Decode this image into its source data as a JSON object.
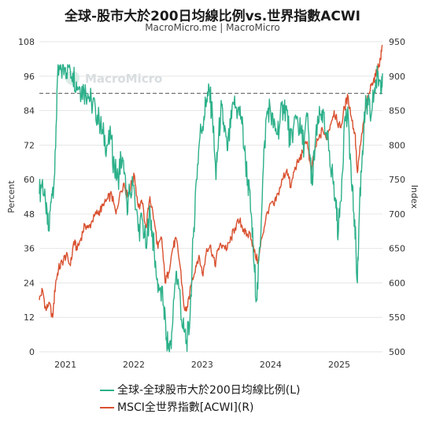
{
  "title": "全球-股市大於200日均線比例vs.世界指數ACWI",
  "subtitle": "MacroMicro.me | MacroMicro",
  "watermark": "MacroMicro",
  "colors": {
    "left_series": "#2db08a",
    "right_series": "#d9502f",
    "grid": "#e6e6e6",
    "ref_line": "#555555"
  },
  "chart_data": {
    "type": "line",
    "x_range": [
      "2020-08-15",
      "2025-08-20"
    ],
    "xticks": [
      "2021",
      "2022",
      "2023",
      "2024",
      "2025"
    ],
    "ylabel_left": "Percent",
    "ylabel_right": "Index",
    "ylim_left": [
      0,
      108
    ],
    "ylim_right": [
      500,
      950
    ],
    "yticks_left": [
      "0",
      "12",
      "24",
      "36",
      "48",
      "60",
      "72",
      "84",
      "96",
      "108"
    ],
    "yticks_right": [
      "500",
      "550",
      "600",
      "650",
      "700",
      "750",
      "800",
      "850",
      "900",
      "950"
    ],
    "reference_line_left": 90,
    "grid": true,
    "legend_position": "bottom",
    "series": [
      {
        "name": "全球-全球股市大於200日均線比例(L)",
        "axis": "left",
        "points": [
          [
            "2020-08-15",
            55
          ],
          [
            "2020-09-01",
            60
          ],
          [
            "2020-09-20",
            48
          ],
          [
            "2020-10-05",
            42
          ],
          [
            "2020-10-20",
            55
          ],
          [
            "2020-11-05",
            62
          ],
          [
            "2020-11-20",
            96
          ],
          [
            "2020-12-10",
            98
          ],
          [
            "2021-01-01",
            99
          ],
          [
            "2021-01-20",
            99
          ],
          [
            "2021-02-10",
            97
          ],
          [
            "2021-03-01",
            94
          ],
          [
            "2021-03-20",
            92
          ],
          [
            "2021-04-10",
            91
          ],
          [
            "2021-05-01",
            90
          ],
          [
            "2021-05-20",
            87
          ],
          [
            "2021-06-10",
            85
          ],
          [
            "2021-07-01",
            80
          ],
          [
            "2021-07-20",
            76
          ],
          [
            "2021-08-10",
            72
          ],
          [
            "2021-09-01",
            74
          ],
          [
            "2021-09-20",
            64
          ],
          [
            "2021-10-10",
            60
          ],
          [
            "2021-10-25",
            68
          ],
          [
            "2021-11-10",
            62
          ],
          [
            "2021-11-25",
            52
          ],
          [
            "2021-12-10",
            55
          ],
          [
            "2022-01-01",
            58
          ],
          [
            "2022-01-25",
            42
          ],
          [
            "2022-02-15",
            46
          ],
          [
            "2022-03-10",
            36
          ],
          [
            "2022-03-25",
            50
          ],
          [
            "2022-04-10",
            42
          ],
          [
            "2022-05-01",
            26
          ],
          [
            "2022-05-20",
            22
          ],
          [
            "2022-06-10",
            16
          ],
          [
            "2022-06-25",
            5
          ],
          [
            "2022-07-10",
            0
          ],
          [
            "2022-07-25",
            8
          ],
          [
            "2022-08-15",
            28
          ],
          [
            "2022-09-01",
            22
          ],
          [
            "2022-09-20",
            8
          ],
          [
            "2022-10-10",
            4
          ],
          [
            "2022-10-25",
            8
          ],
          [
            "2022-11-15",
            40
          ],
          [
            "2022-12-01",
            60
          ],
          [
            "2022-12-20",
            75
          ],
          [
            "2023-01-10",
            82
          ],
          [
            "2023-01-25",
            88
          ],
          [
            "2023-02-10",
            90
          ],
          [
            "2023-02-25",
            82
          ],
          [
            "2023-03-15",
            60
          ],
          [
            "2023-03-25",
            70
          ],
          [
            "2023-04-10",
            84
          ],
          [
            "2023-04-25",
            80
          ],
          [
            "2023-05-15",
            70
          ],
          [
            "2023-06-01",
            78
          ],
          [
            "2023-06-20",
            86
          ],
          [
            "2023-07-10",
            84
          ],
          [
            "2023-07-28",
            82
          ],
          [
            "2023-08-15",
            70
          ],
          [
            "2023-09-01",
            60
          ],
          [
            "2023-09-20",
            48
          ],
          [
            "2023-10-05",
            30
          ],
          [
            "2023-10-20",
            18
          ],
          [
            "2023-11-05",
            36
          ],
          [
            "2023-11-20",
            60
          ],
          [
            "2023-12-10",
            82
          ],
          [
            "2023-12-28",
            86
          ],
          [
            "2024-01-15",
            78
          ],
          [
            "2024-02-01",
            76
          ],
          [
            "2024-02-20",
            80
          ],
          [
            "2024-03-10",
            86
          ],
          [
            "2024-03-28",
            84
          ],
          [
            "2024-04-15",
            72
          ],
          [
            "2024-05-01",
            78
          ],
          [
            "2024-05-20",
            82
          ],
          [
            "2024-06-10",
            76
          ],
          [
            "2024-06-28",
            72
          ],
          [
            "2024-07-15",
            82
          ],
          [
            "2024-08-01",
            66
          ],
          [
            "2024-08-10",
            58
          ],
          [
            "2024-08-25",
            72
          ],
          [
            "2024-09-15",
            80
          ],
          [
            "2024-10-01",
            84
          ],
          [
            "2024-10-20",
            76
          ],
          [
            "2024-11-10",
            70
          ],
          [
            "2024-11-28",
            60
          ],
          [
            "2024-12-15",
            50
          ],
          [
            "2024-12-28",
            42
          ],
          [
            "2025-01-15",
            60
          ],
          [
            "2025-02-01",
            82
          ],
          [
            "2025-02-20",
            80
          ],
          [
            "2025-03-10",
            56
          ],
          [
            "2025-03-25",
            46
          ],
          [
            "2025-04-08",
            24
          ],
          [
            "2025-04-20",
            52
          ],
          [
            "2025-05-05",
            70
          ],
          [
            "2025-05-20",
            84
          ],
          [
            "2025-06-05",
            86
          ],
          [
            "2025-06-20",
            82
          ],
          [
            "2025-07-10",
            92
          ],
          [
            "2025-07-25",
            96
          ],
          [
            "2025-08-10",
            94
          ],
          [
            "2025-08-20",
            97
          ]
        ]
      },
      {
        "name": "MSCI全世界指數[ACWI](R)",
        "axis": "right",
        "points": [
          [
            "2020-08-15",
            575
          ],
          [
            "2020-09-01",
            590
          ],
          [
            "2020-09-20",
            560
          ],
          [
            "2020-10-05",
            572
          ],
          [
            "2020-10-25",
            550
          ],
          [
            "2020-11-10",
            600
          ],
          [
            "2020-11-25",
            620
          ],
          [
            "2020-12-15",
            630
          ],
          [
            "2021-01-05",
            640
          ],
          [
            "2021-01-28",
            625
          ],
          [
            "2021-02-15",
            660
          ],
          [
            "2021-03-05",
            648
          ],
          [
            "2021-03-25",
            665
          ],
          [
            "2021-04-15",
            685
          ],
          [
            "2021-05-05",
            680
          ],
          [
            "2021-05-25",
            690
          ],
          [
            "2021-06-15",
            700
          ],
          [
            "2021-07-05",
            705
          ],
          [
            "2021-07-25",
            712
          ],
          [
            "2021-08-15",
            722
          ],
          [
            "2021-09-05",
            728
          ],
          [
            "2021-09-28",
            700
          ],
          [
            "2021-10-20",
            732
          ],
          [
            "2021-11-10",
            745
          ],
          [
            "2021-11-28",
            725
          ],
          [
            "2021-12-15",
            740
          ],
          [
            "2022-01-05",
            755
          ],
          [
            "2022-01-25",
            710
          ],
          [
            "2022-02-15",
            715
          ],
          [
            "2022-03-08",
            680
          ],
          [
            "2022-03-28",
            725
          ],
          [
            "2022-04-20",
            690
          ],
          [
            "2022-05-10",
            650
          ],
          [
            "2022-05-30",
            665
          ],
          [
            "2022-06-17",
            600
          ],
          [
            "2022-07-05",
            615
          ],
          [
            "2022-07-28",
            650
          ],
          [
            "2022-08-15",
            665
          ],
          [
            "2022-09-05",
            625
          ],
          [
            "2022-09-30",
            560
          ],
          [
            "2022-10-15",
            565
          ],
          [
            "2022-11-05",
            600
          ],
          [
            "2022-11-28",
            625
          ],
          [
            "2022-12-15",
            640
          ],
          [
            "2023-01-05",
            610
          ],
          [
            "2023-01-25",
            650
          ],
          [
            "2023-02-15",
            655
          ],
          [
            "2023-03-10",
            625
          ],
          [
            "2023-03-28",
            650
          ],
          [
            "2023-04-20",
            655
          ],
          [
            "2023-05-15",
            650
          ],
          [
            "2023-06-05",
            665
          ],
          [
            "2023-06-25",
            680
          ],
          [
            "2023-07-20",
            690
          ],
          [
            "2023-08-10",
            678
          ],
          [
            "2023-08-25",
            668
          ],
          [
            "2023-09-15",
            672
          ],
          [
            "2023-10-05",
            645
          ],
          [
            "2023-10-27",
            630
          ],
          [
            "2023-11-15",
            665
          ],
          [
            "2023-12-05",
            690
          ],
          [
            "2023-12-28",
            715
          ],
          [
            "2024-01-20",
            712
          ],
          [
            "2024-02-10",
            730
          ],
          [
            "2024-03-05",
            750
          ],
          [
            "2024-03-28",
            765
          ],
          [
            "2024-04-18",
            738
          ],
          [
            "2024-05-10",
            768
          ],
          [
            "2024-05-30",
            775
          ],
          [
            "2024-06-20",
            790
          ],
          [
            "2024-07-15",
            805
          ],
          [
            "2024-08-05",
            760
          ],
          [
            "2024-08-25",
            795
          ],
          [
            "2024-09-15",
            810
          ],
          [
            "2024-10-05",
            822
          ],
          [
            "2024-10-25",
            808
          ],
          [
            "2024-11-15",
            830
          ],
          [
            "2024-12-05",
            850
          ],
          [
            "2024-12-20",
            835
          ],
          [
            "2025-01-10",
            825
          ],
          [
            "2025-01-30",
            855
          ],
          [
            "2025-02-18",
            870
          ],
          [
            "2025-03-10",
            835
          ],
          [
            "2025-03-28",
            815
          ],
          [
            "2025-04-08",
            760
          ],
          [
            "2025-04-25",
            800
          ],
          [
            "2025-05-15",
            840
          ],
          [
            "2025-06-05",
            870
          ],
          [
            "2025-06-25",
            890
          ],
          [
            "2025-07-15",
            900
          ],
          [
            "2025-07-30",
            915
          ],
          [
            "2025-08-10",
            925
          ],
          [
            "2025-08-20",
            945
          ]
        ]
      }
    ]
  }
}
